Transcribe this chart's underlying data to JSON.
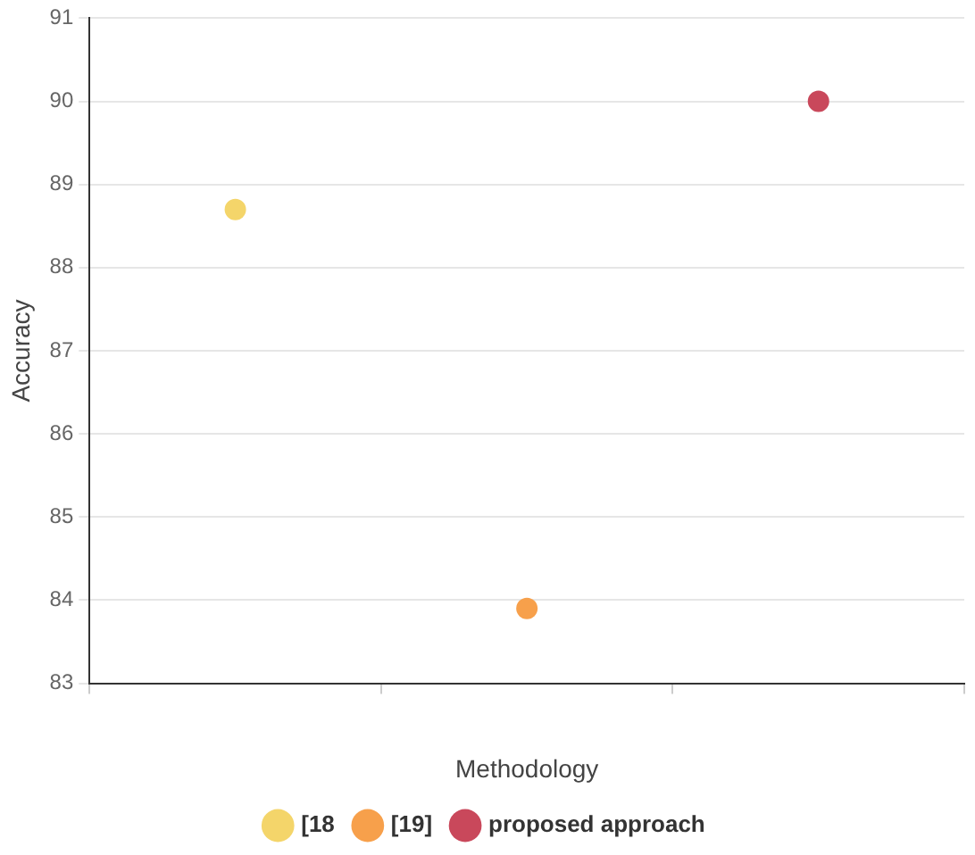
{
  "chart_data": {
    "type": "scatter",
    "xlabel": "Methodology",
    "ylabel": "Accuracy",
    "categories": [
      null,
      null,
      null
    ],
    "series": [
      {
        "name": "[18",
        "color": "#f4d56a",
        "values": [
          88.7,
          null,
          null
        ]
      },
      {
        "name": "[19]",
        "color": "#f7a04b",
        "values": [
          null,
          83.9,
          null
        ]
      },
      {
        "name": "proposed approach",
        "color": "#c9485b",
        "values": [
          null,
          null,
          90
        ]
      }
    ],
    "ylim": [
      83,
      91
    ],
    "yticks": [
      83,
      84,
      85,
      86,
      87,
      88,
      89,
      90,
      91
    ],
    "grid": "y",
    "legend": "bottom",
    "marker": "circle"
  }
}
